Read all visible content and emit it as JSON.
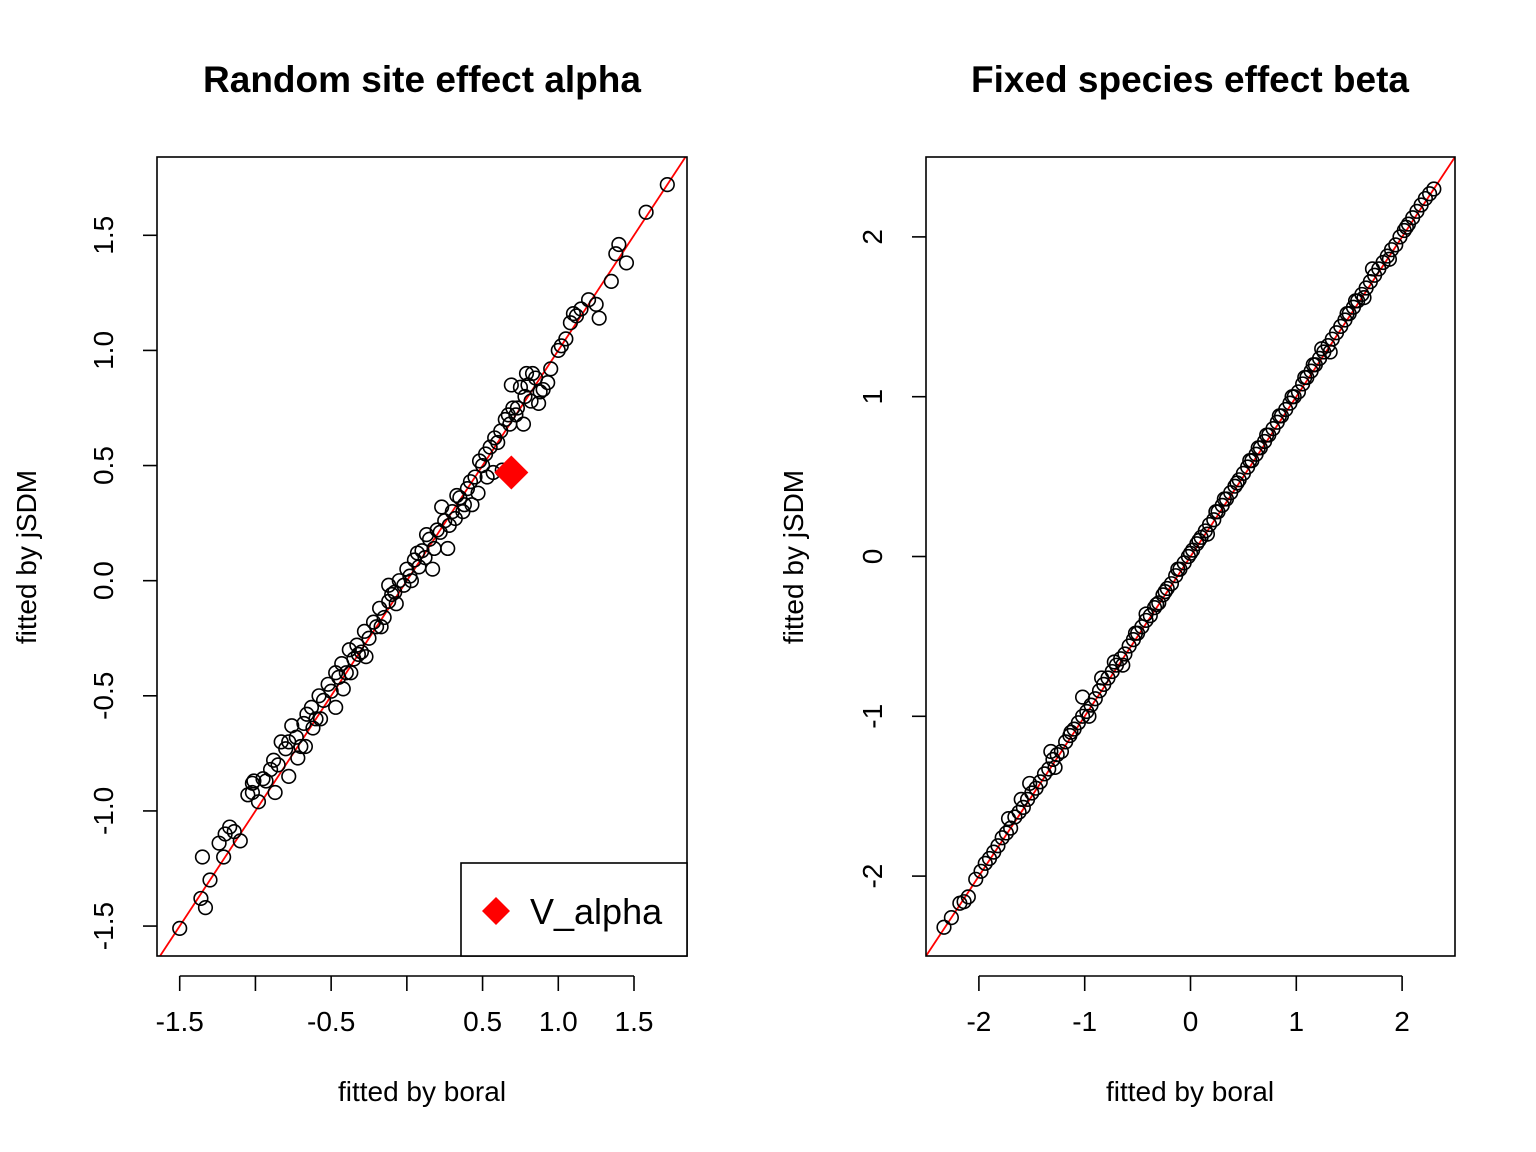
{
  "chart_data": [
    {
      "type": "scatter",
      "title": "Random site effect alpha",
      "xlabel": "fitted by boral",
      "ylabel": "fitted by jSDM",
      "xlim": [
        -1.65,
        1.85
      ],
      "ylim": [
        -1.63,
        1.84
      ],
      "xticks": [
        -1.5,
        -1.0,
        -0.5,
        0.0,
        0.5,
        1.0,
        1.5
      ],
      "xtick_labels": [
        "-1.5",
        "",
        "-0.5",
        "",
        "0.5",
        "1.0",
        "1.5"
      ],
      "yticks": [
        -1.5,
        -1.0,
        -0.5,
        0.0,
        0.5,
        1.0,
        1.5
      ],
      "ytick_labels": [
        "-1.5",
        "-1.0",
        "-0.5",
        "0.0",
        "0.5",
        "1.0",
        "1.5"
      ],
      "reference_line": {
        "slope": 1,
        "intercept": 0,
        "color": "#ff0000"
      },
      "marker_color": "#000000",
      "series": [
        {
          "marker": "open-circle",
          "x": [
            -1.5,
            -1.36,
            -1.35,
            -1.33,
            -1.3,
            -1.24,
            -1.21,
            -1.2,
            -1.17,
            -1.14,
            -1.1,
            -1.05,
            -1.02,
            -1.02,
            -1.01,
            -0.98,
            -0.95,
            -0.93,
            -0.9,
            -0.88,
            -0.85,
            -0.83,
            -0.8,
            -0.78,
            -0.76,
            -0.73,
            -0.7,
            -0.68,
            -0.66,
            -0.63,
            -0.6,
            -0.58,
            -0.55,
            -0.52,
            -0.5,
            -0.47,
            -0.45,
            -0.43,
            -0.4,
            -0.38,
            -0.35,
            -0.33,
            -0.3,
            -0.28,
            -0.25,
            -0.22,
            -0.2,
            -0.18,
            -0.15,
            -0.12,
            -0.1,
            -0.08,
            -0.05,
            -0.02,
            0.0,
            0.02,
            0.05,
            0.08,
            0.1,
            0.12,
            0.15,
            0.18,
            0.2,
            0.22,
            0.25,
            0.28,
            0.3,
            0.32,
            0.35,
            0.38,
            0.4,
            0.42,
            0.45,
            0.48,
            0.5,
            0.52,
            0.55,
            0.58,
            0.6,
            0.62,
            0.65,
            0.68,
            0.7,
            0.72,
            0.75,
            0.78,
            0.8,
            0.82,
            0.85,
            0.88,
            0.9,
            0.95,
            1.0,
            1.02,
            1.05,
            1.08,
            1.12,
            1.15,
            1.2,
            1.27,
            1.35,
            1.38,
            1.4,
            1.45,
            1.58,
            1.72,
            -0.87,
            -0.78,
            -0.72,
            -0.67,
            -0.62,
            -0.57,
            -0.42,
            -0.37,
            -0.27,
            -0.17,
            -0.07,
            0.03,
            0.13,
            0.23,
            0.33,
            0.43,
            0.47,
            0.57,
            0.63,
            0.69,
            0.73,
            0.77,
            0.83,
            0.87,
            0.93,
            -0.47,
            -0.32,
            -0.12,
            0.07,
            0.17,
            0.27,
            0.37,
            0.53,
            0.67,
            0.79,
            1.1,
            1.25
          ],
          "y": [
            -1.51,
            -1.38,
            -1.2,
            -1.42,
            -1.3,
            -1.14,
            -1.2,
            -1.1,
            -1.07,
            -1.09,
            -1.13,
            -0.93,
            -0.92,
            -0.88,
            -0.87,
            -0.96,
            -0.86,
            -0.87,
            -0.82,
            -0.78,
            -0.8,
            -0.7,
            -0.73,
            -0.7,
            -0.63,
            -0.68,
            -0.72,
            -0.62,
            -0.58,
            -0.55,
            -0.6,
            -0.5,
            -0.52,
            -0.45,
            -0.48,
            -0.4,
            -0.42,
            -0.36,
            -0.4,
            -0.3,
            -0.34,
            -0.28,
            -0.31,
            -0.22,
            -0.25,
            -0.18,
            -0.2,
            -0.12,
            -0.16,
            -0.09,
            -0.06,
            -0.05,
            0.0,
            -0.02,
            0.05,
            0.02,
            0.09,
            0.06,
            0.13,
            0.1,
            0.18,
            0.14,
            0.22,
            0.21,
            0.26,
            0.24,
            0.3,
            0.27,
            0.36,
            0.33,
            0.4,
            0.43,
            0.45,
            0.52,
            0.5,
            0.55,
            0.58,
            0.62,
            0.6,
            0.65,
            0.7,
            0.68,
            0.75,
            0.72,
            0.84,
            0.8,
            0.85,
            0.78,
            0.88,
            0.82,
            0.83,
            0.92,
            1.0,
            1.02,
            1.05,
            1.12,
            1.15,
            1.18,
            1.22,
            1.14,
            1.3,
            1.42,
            1.46,
            1.38,
            1.6,
            1.72,
            -0.92,
            -0.85,
            -0.77,
            -0.72,
            -0.64,
            -0.6,
            -0.47,
            -0.4,
            -0.33,
            -0.2,
            -0.1,
            0.0,
            0.2,
            0.32,
            0.37,
            0.33,
            0.38,
            0.47,
            0.48,
            0.85,
            0.75,
            0.68,
            0.9,
            0.77,
            0.86,
            -0.55,
            -0.32,
            -0.02,
            0.12,
            0.05,
            0.14,
            0.3,
            0.45,
            0.72,
            0.9,
            1.16,
            1.2
          ]
        },
        {
          "name": "V_alpha",
          "marker": "filled-diamond",
          "color": "#ff0000",
          "x": [
            0.69
          ],
          "y": [
            0.47
          ]
        }
      ],
      "legend": {
        "entries": [
          "V_alpha"
        ],
        "placement": "bottom-right"
      }
    },
    {
      "type": "scatter",
      "title": "Fixed species effect beta",
      "xlabel": "fitted by boral",
      "ylabel": "fitted by jSDM",
      "xlim": [
        -2.5,
        2.5
      ],
      "ylim": [
        -2.5,
        2.5
      ],
      "xticks": [
        -2,
        -1,
        0,
        1,
        2
      ],
      "xtick_labels": [
        "-2",
        "-1",
        "0",
        "1",
        "2"
      ],
      "yticks": [
        -2,
        -1,
        0,
        1,
        2
      ],
      "ytick_labels": [
        "-2",
        "-1",
        "0",
        "1",
        "2"
      ],
      "reference_line": {
        "slope": 1,
        "intercept": 0,
        "color": "#ff0000"
      },
      "marker_color": "#000000",
      "series": [
        {
          "marker": "open-circle",
          "x": [
            -2.33,
            -2.26,
            -2.18,
            -2.14,
            -2.1,
            -2.03,
            -1.98,
            -1.94,
            -1.9,
            -1.86,
            -1.82,
            -1.78,
            -1.74,
            -1.7,
            -1.66,
            -1.62,
            -1.58,
            -1.54,
            -1.5,
            -1.46,
            -1.42,
            -1.38,
            -1.34,
            -1.3,
            -1.26,
            -1.22,
            -1.18,
            -1.14,
            -1.1,
            -1.06,
            -1.02,
            -0.98,
            -0.94,
            -0.9,
            -0.86,
            -0.82,
            -0.78,
            -0.74,
            -0.7,
            -0.66,
            -0.62,
            -0.58,
            -0.54,
            -0.5,
            -0.46,
            -0.42,
            -0.38,
            -0.34,
            -0.3,
            -0.26,
            -0.22,
            -0.18,
            -0.14,
            -0.1,
            -0.06,
            -0.02,
            0.02,
            0.06,
            0.1,
            0.14,
            0.18,
            0.22,
            0.26,
            0.3,
            0.34,
            0.38,
            0.42,
            0.46,
            0.5,
            0.54,
            0.58,
            0.62,
            0.66,
            0.7,
            0.74,
            0.78,
            0.82,
            0.86,
            0.9,
            0.94,
            0.98,
            1.02,
            1.06,
            1.1,
            1.14,
            1.18,
            1.22,
            1.26,
            1.3,
            1.34,
            1.38,
            1.42,
            1.46,
            1.5,
            1.54,
            1.58,
            1.62,
            1.66,
            1.7,
            1.74,
            1.78,
            1.82,
            1.86,
            1.9,
            1.94,
            1.98,
            2.02,
            2.06,
            2.1,
            2.14,
            2.18,
            2.22,
            2.26,
            2.3,
            -1.72,
            -1.6,
            -1.52,
            -1.32,
            -1.28,
            -1.13,
            -1.02,
            -0.96,
            -0.84,
            -0.72,
            -0.64,
            -0.52,
            -0.42,
            -0.32,
            -0.24,
            -0.12,
            0.0,
            0.08,
            0.16,
            0.24,
            0.32,
            0.44,
            0.56,
            0.64,
            0.72,
            0.84,
            0.96,
            1.08,
            1.16,
            1.24,
            1.32,
            1.48,
            1.56,
            1.64,
            1.72,
            1.88,
            2.04
          ],
          "y": [
            -2.32,
            -2.26,
            -2.17,
            -2.16,
            -2.13,
            -2.02,
            -1.97,
            -1.92,
            -1.89,
            -1.85,
            -1.81,
            -1.76,
            -1.73,
            -1.7,
            -1.63,
            -1.6,
            -1.57,
            -1.52,
            -1.48,
            -1.45,
            -1.41,
            -1.36,
            -1.33,
            -1.27,
            -1.24,
            -1.22,
            -1.16,
            -1.12,
            -1.08,
            -1.04,
            -1.0,
            -0.97,
            -0.93,
            -0.89,
            -0.84,
            -0.8,
            -0.76,
            -0.72,
            -0.68,
            -0.64,
            -0.61,
            -0.56,
            -0.52,
            -0.48,
            -0.44,
            -0.4,
            -0.37,
            -0.32,
            -0.29,
            -0.24,
            -0.2,
            -0.17,
            -0.12,
            -0.08,
            -0.04,
            0.0,
            0.04,
            0.08,
            0.12,
            0.16,
            0.2,
            0.23,
            0.28,
            0.32,
            0.36,
            0.4,
            0.44,
            0.48,
            0.52,
            0.56,
            0.6,
            0.64,
            0.68,
            0.72,
            0.76,
            0.8,
            0.84,
            0.88,
            0.92,
            0.96,
            1.0,
            1.03,
            1.08,
            1.12,
            1.16,
            1.2,
            1.24,
            1.28,
            1.32,
            1.36,
            1.4,
            1.44,
            1.48,
            1.52,
            1.56,
            1.6,
            1.64,
            1.68,
            1.72,
            1.76,
            1.8,
            1.84,
            1.88,
            1.92,
            1.95,
            2.0,
            2.04,
            2.08,
            2.12,
            2.16,
            2.2,
            2.24,
            2.27,
            2.3,
            -1.64,
            -1.52,
            -1.42,
            -1.22,
            -1.32,
            -1.1,
            -0.88,
            -1.0,
            -0.76,
            -0.66,
            -0.68,
            -0.48,
            -0.36,
            -0.3,
            -0.22,
            -0.08,
            0.02,
            0.1,
            0.14,
            0.28,
            0.36,
            0.46,
            0.6,
            0.68,
            0.76,
            0.88,
            1.0,
            1.12,
            1.2,
            1.3,
            1.28,
            1.52,
            1.6,
            1.62,
            1.8,
            1.86,
            2.06
          ]
        }
      ]
    }
  ]
}
